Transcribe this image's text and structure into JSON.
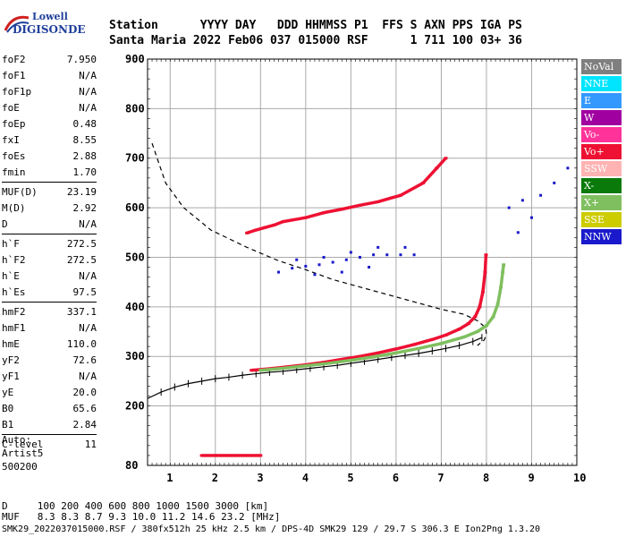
{
  "logo": {
    "line1": "Lowell",
    "line2": "DIGISONDE"
  },
  "header": {
    "labels": [
      "Station",
      "YYYY",
      "DAY",
      "DDD",
      "HHMMSS",
      "P1",
      "FFS",
      "S",
      "AXN",
      "PPS",
      "IGA",
      "PS"
    ],
    "values": [
      "Santa Maria",
      "2022",
      "Feb06",
      "037",
      "015000",
      "RSF",
      "",
      "1",
      "711",
      "100",
      "03+",
      "36"
    ]
  },
  "params": {
    "group1": [
      {
        "name": "foF2",
        "value": "7.950"
      },
      {
        "name": "foF1",
        "value": "N/A"
      },
      {
        "name": "foF1p",
        "value": "N/A"
      },
      {
        "name": "foE",
        "value": "N/A"
      },
      {
        "name": "foEp",
        "value": "0.48"
      },
      {
        "name": "fxI",
        "value": "8.55"
      },
      {
        "name": "foEs",
        "value": "2.88"
      },
      {
        "name": "fmin",
        "value": "1.70"
      }
    ],
    "group2": [
      {
        "name": "MUF(D)",
        "value": "23.19"
      },
      {
        "name": "M(D)",
        "value": "2.92"
      },
      {
        "name": "D",
        "value": "N/A"
      }
    ],
    "group3": [
      {
        "name": "h`F",
        "value": "272.5"
      },
      {
        "name": "h`F2",
        "value": "272.5"
      },
      {
        "name": "h`E",
        "value": "N/A"
      },
      {
        "name": "h`Es",
        "value": "97.5"
      }
    ],
    "group4": [
      {
        "name": "hmF2",
        "value": "337.1"
      },
      {
        "name": "hmF1",
        "value": "N/A"
      },
      {
        "name": "hmE",
        "value": "110.0"
      },
      {
        "name": "yF2",
        "value": "72.6"
      },
      {
        "name": "yF1",
        "value": "N/A"
      },
      {
        "name": "yE",
        "value": "20.0"
      },
      {
        "name": "B0",
        "value": "65.6"
      },
      {
        "name": "B1",
        "value": "2.84"
      }
    ],
    "group5": [
      {
        "name": "C-level",
        "value": "11"
      }
    ]
  },
  "auto": {
    "line1": "Auto:",
    "line2": "Artist5",
    "line3": "500200"
  },
  "legend": [
    {
      "label": "NoVal",
      "color": "#7f7f7f",
      "text": "#ffffff"
    },
    {
      "label": "NNE",
      "color": "#00e5ff",
      "text": "#ffffff"
    },
    {
      "label": "E",
      "color": "#3399ff",
      "text": "#ffffff"
    },
    {
      "label": "W",
      "color": "#a000a0",
      "text": "#ffffff"
    },
    {
      "label": "Vo-",
      "color": "#ff3399",
      "text": "#ffffff"
    },
    {
      "label": "Vo+",
      "color": "#ee1133",
      "text": "#ffffff"
    },
    {
      "label": "SSW",
      "color": "#ffb3b3",
      "text": "#ffffff"
    },
    {
      "label": "X-",
      "color": "#0a7a0a",
      "text": "#ffffff"
    },
    {
      "label": "X+",
      "color": "#7fbf5f",
      "text": "#ffffff"
    },
    {
      "label": "SSE",
      "color": "#cccc00",
      "text": "#ffffff"
    },
    {
      "label": "NNW",
      "color": "#1a1acc",
      "text": "#ffffff"
    }
  ],
  "bottom": {
    "d_label": "D",
    "d_values": [
      "100",
      "200",
      "400",
      "600",
      "800",
      "1000",
      "1500",
      "3000"
    ],
    "d_unit": "[km]",
    "muf_label": "MUF",
    "muf_values": [
      "8.3",
      "8.3",
      "8.7",
      "9.3",
      "10.0",
      "11.2",
      "14.6",
      "23.2"
    ],
    "muf_unit": "[MHz]"
  },
  "footer": "SMK29_2022037015000.RSF / 380fx512h 25 kHz 2.5 km / DPS-4D SMK29 129 / 29.7 S 306.3 E Ion2Png 1.3.20",
  "chart_data": {
    "type": "scatter",
    "x_range": [
      0.5,
      10
    ],
    "y_range": [
      80,
      900
    ],
    "x_ticks": [
      "1",
      "2",
      "3",
      "4",
      "5",
      "6",
      "7",
      "8",
      "9",
      "10"
    ],
    "y_ticks": [
      "80",
      "200",
      "300",
      "400",
      "500",
      "600",
      "700",
      "800",
      "900"
    ],
    "grid": true,
    "series": [
      {
        "name": "Vo+",
        "color": "#ee1133",
        "points": [
          [
            2.8,
            272
          ],
          [
            3.2,
            275
          ],
          [
            3.6,
            279
          ],
          [
            4.0,
            283
          ],
          [
            4.4,
            288
          ],
          [
            4.8,
            294
          ],
          [
            5.2,
            300
          ],
          [
            5.6,
            307
          ],
          [
            6.0,
            315
          ],
          [
            6.4,
            324
          ],
          [
            6.8,
            334
          ],
          [
            7.1,
            343
          ],
          [
            7.4,
            355
          ],
          [
            7.6,
            366
          ],
          [
            7.75,
            380
          ],
          [
            7.85,
            400
          ],
          [
            7.92,
            430
          ],
          [
            7.97,
            470
          ],
          [
            7.99,
            505
          ]
        ]
      },
      {
        "name": "X+",
        "color": "#7fbf5f",
        "points": [
          [
            3.0,
            272
          ],
          [
            3.5,
            276
          ],
          [
            4.0,
            281
          ],
          [
            4.5,
            286
          ],
          [
            5.0,
            292
          ],
          [
            5.5,
            299
          ],
          [
            6.0,
            307
          ],
          [
            6.5,
            316
          ],
          [
            7.0,
            326
          ],
          [
            7.5,
            339
          ],
          [
            7.8,
            350
          ],
          [
            8.0,
            362
          ],
          [
            8.15,
            380
          ],
          [
            8.25,
            405
          ],
          [
            8.32,
            440
          ],
          [
            8.36,
            470
          ],
          [
            8.38,
            485
          ]
        ]
      },
      {
        "name": "NNW",
        "color": "#1a1acc",
        "points": [
          [
            3.4,
            470
          ],
          [
            3.7,
            478
          ],
          [
            4.0,
            482
          ],
          [
            4.3,
            485
          ],
          [
            4.6,
            490
          ],
          [
            4.9,
            495
          ],
          [
            5.2,
            500
          ],
          [
            5.5,
            505
          ],
          [
            5.8,
            505
          ],
          [
            6.1,
            505
          ],
          [
            6.4,
            505
          ],
          [
            3.8,
            495
          ],
          [
            4.4,
            500
          ],
          [
            5.0,
            510
          ],
          [
            5.6,
            520
          ],
          [
            6.2,
            520
          ],
          [
            4.2,
            465
          ],
          [
            4.8,
            470
          ],
          [
            5.4,
            480
          ],
          [
            8.5,
            600
          ],
          [
            8.8,
            615
          ],
          [
            9.2,
            625
          ],
          [
            9.5,
            650
          ],
          [
            9.8,
            680
          ],
          [
            8.7,
            550
          ],
          [
            9.0,
            580
          ]
        ]
      },
      {
        "name": "Vo+ (2nd)",
        "color": "#ee1133",
        "points": [
          [
            2.7,
            549
          ],
          [
            2.9,
            555
          ],
          [
            3.1,
            560
          ],
          [
            3.3,
            565
          ],
          [
            3.5,
            572
          ],
          [
            4.0,
            580
          ],
          [
            4.4,
            590
          ],
          [
            4.8,
            597
          ],
          [
            5.2,
            605
          ],
          [
            5.6,
            612
          ],
          [
            5.9,
            620
          ],
          [
            6.1,
            625
          ],
          [
            6.6,
            650
          ],
          [
            6.9,
            680
          ],
          [
            7.1,
            700
          ]
        ]
      },
      {
        "name": "Es",
        "color": "#ee1133",
        "points": [
          [
            1.7,
            100
          ],
          [
            2.0,
            100
          ],
          [
            2.3,
            100
          ],
          [
            2.6,
            100
          ],
          [
            2.9,
            100
          ],
          [
            3.0,
            100
          ]
        ]
      }
    ],
    "curves": [
      {
        "name": "profile",
        "style": "dashed",
        "points": [
          [
            0.6,
            730
          ],
          [
            0.9,
            650
          ],
          [
            1.3,
            600
          ],
          [
            1.9,
            555
          ],
          [
            2.7,
            520
          ],
          [
            3.4,
            493
          ],
          [
            4.0,
            475
          ],
          [
            4.6,
            455
          ],
          [
            5.2,
            440
          ],
          [
            5.8,
            425
          ],
          [
            6.4,
            410
          ],
          [
            7.0,
            395
          ],
          [
            7.5,
            385
          ],
          [
            7.8,
            372
          ],
          [
            7.98,
            358
          ],
          [
            8.0,
            345
          ],
          [
            7.95,
            333
          ],
          [
            7.8,
            322
          ]
        ]
      },
      {
        "name": "virtual-height",
        "style": "crosses",
        "points": [
          [
            0.5,
            215
          ],
          [
            0.8,
            228
          ],
          [
            1.1,
            238
          ],
          [
            1.4,
            245
          ],
          [
            1.7,
            250
          ],
          [
            2.0,
            255
          ],
          [
            2.3,
            258
          ],
          [
            2.6,
            262
          ],
          [
            2.9,
            265
          ],
          [
            3.2,
            268
          ],
          [
            3.5,
            270
          ],
          [
            3.8,
            273
          ],
          [
            4.1,
            276
          ],
          [
            4.4,
            279
          ],
          [
            4.7,
            282
          ],
          [
            5.0,
            286
          ],
          [
            5.3,
            290
          ],
          [
            5.6,
            294
          ],
          [
            5.9,
            298
          ],
          [
            6.2,
            302
          ],
          [
            6.5,
            306
          ],
          [
            6.8,
            311
          ],
          [
            7.1,
            316
          ],
          [
            7.4,
            322
          ],
          [
            7.7,
            330
          ],
          [
            7.9,
            338
          ]
        ]
      }
    ]
  }
}
